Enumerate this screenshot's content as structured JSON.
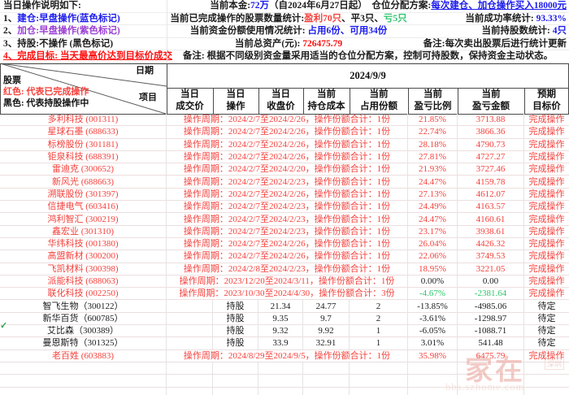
{
  "colors": {
    "black": "#1c1c1c",
    "red": "#f5413c",
    "strongred": "#ff0f0f",
    "blue": "#1b1bee",
    "purple": "#9b3ed4",
    "green": "#2fc56d"
  },
  "notice": {
    "rows": [
      {
        "left": [
          {
            "t": "当日操作说明如下:",
            "c": "black"
          }
        ],
        "mid": [
          {
            "t": "当前本金:",
            "c": "black"
          },
          {
            "t": "72万",
            "c": "blue"
          },
          {
            "t": "（自2024年6月27日起）",
            "c": "black"
          }
        ],
        "right": [
          {
            "t": "仓位分配方案:",
            "c": "black"
          },
          {
            "t": "每次建仓、加仓操作买入18000元",
            "c": "blue",
            "u": true
          }
        ]
      },
      {
        "left": [
          {
            "t": "1、",
            "c": "black"
          },
          {
            "t": "建仓:早盘操作(蓝色标记)",
            "c": "blue"
          }
        ],
        "mid": [
          {
            "t": "当前已完成操作的股票数量统计:",
            "c": "black"
          },
          {
            "t": "盈利70只",
            "c": "red"
          },
          {
            "t": "、",
            "c": "black"
          },
          {
            "t": "平3只",
            "c": "black"
          },
          {
            "t": "、",
            "c": "black"
          },
          {
            "t": "亏5只",
            "c": "green"
          }
        ],
        "right": [
          {
            "t": "当前成功率统计: ",
            "c": "black"
          },
          {
            "t": "93.33%",
            "c": "blue"
          }
        ]
      },
      {
        "left": [
          {
            "t": "2、",
            "c": "black"
          },
          {
            "t": "加仓:早盘操作(紫色标记)",
            "c": "purple"
          }
        ],
        "mid": [
          {
            "t": "当前资金份额使用情况统计: ",
            "c": "black"
          },
          {
            "t": "占用6份、可用34份",
            "c": "blue"
          }
        ],
        "right": [
          {
            "t": "当前持股数统计: ",
            "c": "black"
          },
          {
            "t": "4只",
            "c": "blue"
          }
        ]
      },
      {
        "left": [
          {
            "t": "3、持股:不操作 (黑色标记)",
            "c": "black"
          }
        ],
        "mid": [
          {
            "t": "当前总资产(元): ",
            "c": "black"
          },
          {
            "t": "726475.79",
            "c": "strongred"
          }
        ],
        "right": [
          {
            "t": "备注:每次卖出股票后进行统计更新",
            "c": "black"
          }
        ]
      },
      {
        "left": [
          {
            "t": "4、完成目标: 当天最高价达到目标价成交",
            "c": "strongred",
            "u": true
          }
        ],
        "wide": [
          {
            "t": "备注: 根据不同级别资金量采用适当的仓位分配方案，控制可持股数，保持资金主动状态。",
            "c": "black"
          }
        ]
      }
    ]
  },
  "table": {
    "corner": {
      "date_label": "日期",
      "stock_label": "股票",
      "red_note": "红色: 代表已完成操作",
      "item_label": "项目",
      "black_note": "黑色: 代表持股操作中"
    },
    "date": "2024/9/9",
    "columns": [
      {
        "l1": "当日",
        "l2": "成交价"
      },
      {
        "l1": "当日",
        "l2": "操作"
      },
      {
        "l1": "当日",
        "l2": "收盘价"
      },
      {
        "l1": "当前",
        "l2": "持仓成本"
      },
      {
        "l1": "当前",
        "l2": "占用份额"
      },
      {
        "l1": "当前",
        "l2": "盈亏比例"
      },
      {
        "l1": "当前",
        "l2": "盈亏金额"
      },
      {
        "l1": "预期",
        "l2": "目标价"
      }
    ],
    "rows": [
      {
        "type": "completed",
        "name": "多利科技 (001311)",
        "period": "操作周期：2024/2/7至2024/2/26，操作份额合计：1份",
        "ratio": "21.85%",
        "amount": "3713.88",
        "status": "完成操作",
        "value_color": "red"
      },
      {
        "type": "completed",
        "name": "星球石墨 (688633)",
        "period": "操作周期：2024/2/7至2024/2/26，操作份额合计：1份",
        "ratio": "22.74%",
        "amount": "3866.36",
        "status": "完成操作",
        "value_color": "red"
      },
      {
        "type": "completed",
        "name": "标榜股份 (301181)",
        "period": "操作周期：2024/2/7至2024/2/26，操作份额合计：1份",
        "ratio": "28.18%",
        "amount": "4790.73",
        "status": "完成操作",
        "value_color": "red"
      },
      {
        "type": "completed",
        "name": "钜泉科技 (688391)",
        "period": "操作周期：2024/2/7至2024/2/26，操作份额合计：1份",
        "ratio": "27.81%",
        "amount": "4727.27",
        "status": "完成操作",
        "value_color": "red"
      },
      {
        "type": "completed",
        "name": "雷迪克 (300652)",
        "period": "操作周期：2024/2/7至2024/2/20，操作份额合计：1份",
        "ratio": "21.93%",
        "amount": "3727.46",
        "status": "完成操作",
        "value_color": "red"
      },
      {
        "type": "completed",
        "name": "新风光 (688663)",
        "period": "操作周期：2024/2/7至2024/2/23，操作份额合计：1份",
        "ratio": "24.47%",
        "amount": "4159.78",
        "status": "完成操作",
        "value_color": "red"
      },
      {
        "type": "completed",
        "name": "溯联股份 (301397)",
        "period": "操作周期：2024/2/7至2024/2/26，操作份额合计：1份",
        "ratio": "27.13%",
        "amount": "4612.07",
        "status": "完成操作",
        "value_color": "red"
      },
      {
        "type": "completed",
        "name": "信捷电气 (603416)",
        "period": "操作周期：2024/2/7至2024/2/23，操作份额合计：1份",
        "ratio": "24.49%",
        "amount": "4163.57",
        "status": "完成操作",
        "value_color": "red"
      },
      {
        "type": "completed",
        "name": "鸿利智汇 (300219)",
        "period": "操作周期：2024/2/7至2024/2/23，操作份额合计：1份",
        "ratio": "24.47%",
        "amount": "4160.61",
        "status": "完成操作",
        "value_color": "red"
      },
      {
        "type": "completed",
        "name": "鑫宏业 (301310)",
        "period": "操作周期：2024/2/7至2024/2/23，操作份额合计：1份",
        "ratio": "23.17%",
        "amount": "3938.61",
        "status": "完成操作",
        "value_color": "red"
      },
      {
        "type": "completed",
        "name": "华纬科技 (001380)",
        "period": "操作周期：2024/2/7至2024/2/26，操作份额合计：1份",
        "ratio": "26.04%",
        "amount": "4426.32",
        "status": "完成操作",
        "value_color": "red"
      },
      {
        "type": "completed",
        "name": "高盟新材 (300200)",
        "period": "操作周期：2024/2/7至2024/2/26，操作份额合计：1份",
        "ratio": "22.06%",
        "amount": "3749.53",
        "status": "完成操作",
        "value_color": "red"
      },
      {
        "type": "completed",
        "name": "飞凯材料 (300398)",
        "period": "操作周期：2024/2/8至2024/2/23，操作份额合计：1份",
        "ratio": "18.95%",
        "amount": "3221.05",
        "status": "完成操作",
        "value_color": "red"
      },
      {
        "type": "completed",
        "name": "派能科技 (688063)",
        "period": "操作周期：2023/12/20至2024/3/11，操作份额合计：1份",
        "ratio": "0.00%",
        "amount": "0.00",
        "status": "完成操作",
        "value_color": "black"
      },
      {
        "type": "completed",
        "name": "联化科技 (002250)",
        "period": "操作周期：2023/10/30至2024/4/30，操作份额合计：3份",
        "ratio": "-4.67%",
        "amount": "-2381.64",
        "status": "完成操作",
        "value_color": "green"
      },
      {
        "type": "holding",
        "name": "智飞生物（300122）",
        "op": "持股",
        "close": "21.34",
        "cost": "24.77",
        "shares": "2",
        "ratio": "-13.85%",
        "amount": "-4985.06",
        "status": "待定",
        "value_color": "black"
      },
      {
        "type": "holding",
        "name": "新华百货（600785）",
        "op": "持股",
        "close": "9.35",
        "cost": "9.7",
        "shares": "2",
        "ratio": "-3.61%",
        "amount": "-1298.97",
        "status": "待定",
        "value_color": "black"
      },
      {
        "type": "holding",
        "name": "艾比森（300389）",
        "op": "持股",
        "close": "9.32",
        "cost": "9.92",
        "shares": "1",
        "ratio": "-6.05%",
        "amount": "-1088.71",
        "status": "待定",
        "value_color": "black"
      },
      {
        "type": "holding",
        "name": "曼恩斯特（301325）",
        "op": "持股",
        "close": "33.9",
        "cost": "32.91",
        "shares": "1",
        "ratio": "3.01%",
        "amount": "541.48",
        "status": "待定",
        "value_color": "black"
      },
      {
        "type": "completed",
        "name": "老百姓 (603883)",
        "period": "操作周期：2024/8/29至2024/9/5，操作份额合计：1份",
        "ratio": "35.98%",
        "amount": "6475.79",
        "status": "完成操作",
        "value_color": "red"
      }
    ],
    "empty_rows": 3
  },
  "watermark": {
    "brand": "家在",
    "badge": "深圳",
    "site": "bbs.szhome.com"
  },
  "margin_mark": "✓"
}
